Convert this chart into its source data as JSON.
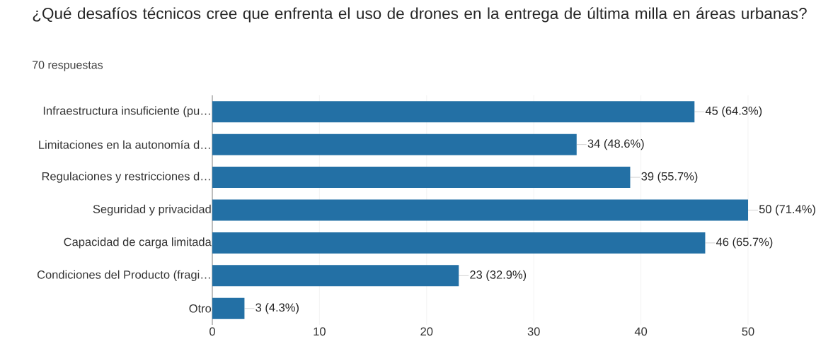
{
  "chart_data": {
    "type": "bar",
    "orientation": "horizontal",
    "title": "¿Qué desafíos técnicos cree que enfrenta el uso de drones en la entrega de última milla en áreas urbanas?",
    "subtitle": "70 respuestas",
    "categories": [
      "Infraestructura insuficiente (pu…",
      "Limitaciones en la autonomía d…",
      "Regulaciones y restricciones d…",
      "Seguridad y privacidad",
      "Capacidad de carga limitada",
      "Condiciones del Producto (fragi…",
      "Otro"
    ],
    "values": [
      45,
      34,
      39,
      50,
      46,
      23,
      3
    ],
    "value_labels": [
      "45 (64.3%)",
      "34 (48.6%)",
      "39 (55.7%)",
      "50 (71.4%)",
      "46 (65.7%)",
      "23 (32.9%)",
      "3 (4.3%)"
    ],
    "color": "#2370a5",
    "xlim": [
      0,
      50
    ],
    "xticks": [
      0,
      10,
      20,
      30,
      40,
      50
    ],
    "grid": "x"
  }
}
